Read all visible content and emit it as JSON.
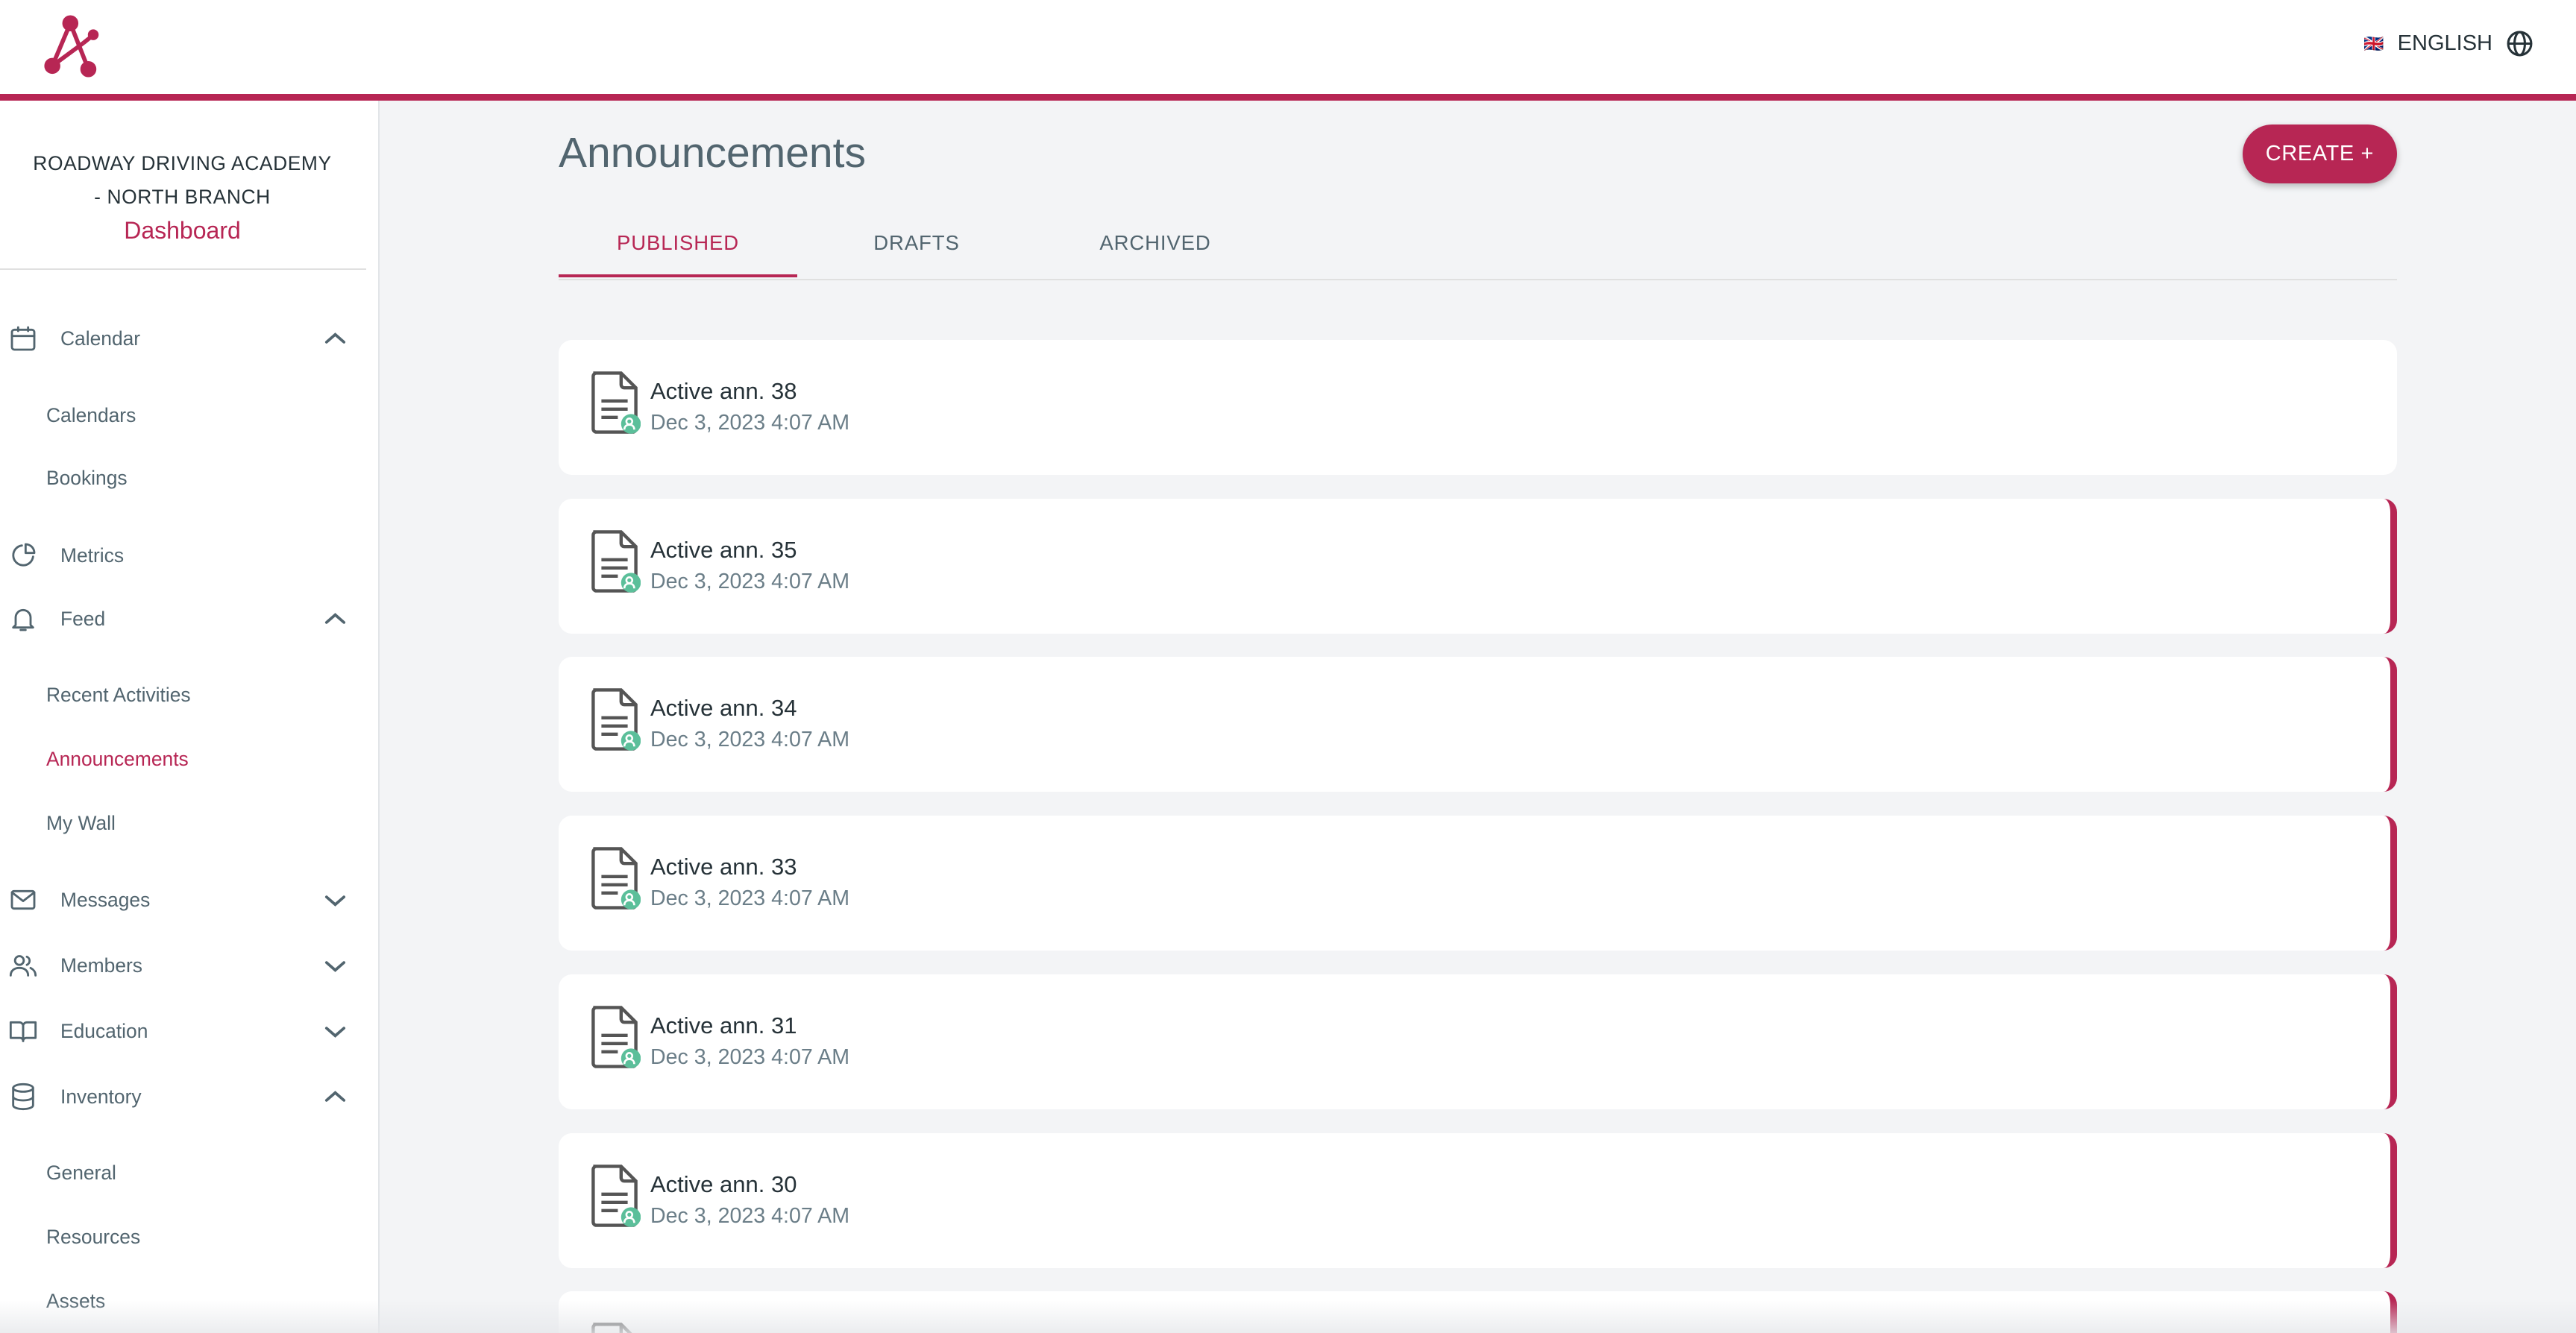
{
  "colors": {
    "accent": "#b72654",
    "badge": "#5bbf9a",
    "text": "#263238",
    "muted": "#52656f"
  },
  "header": {
    "logo": "A",
    "language": "ENGLISH",
    "flag": "🇬🇧",
    "globe_icon": "globe-icon"
  },
  "sidebar": {
    "org_line1": "ROADWAY DRIVING ACADEMY",
    "org_line2": "- NORTH BRANCH",
    "dashboard": "Dashboard",
    "items": [
      {
        "label": "Calendar",
        "icon": "calendar-icon",
        "chevron": "up"
      },
      {
        "label": "Calendars",
        "sub": true
      },
      {
        "label": "Bookings",
        "sub": true
      },
      {
        "label": "Metrics",
        "icon": "pie-chart-icon"
      },
      {
        "label": "Feed",
        "icon": "bell-icon",
        "chevron": "up"
      },
      {
        "label": "Recent Activities",
        "sub": true
      },
      {
        "label": "Announcements",
        "sub": true,
        "active": true
      },
      {
        "label": "My Wall",
        "sub": true
      },
      {
        "label": "Messages",
        "icon": "mail-icon",
        "chevron": "down"
      },
      {
        "label": "Members",
        "icon": "users-icon",
        "chevron": "down"
      },
      {
        "label": "Education",
        "icon": "book-icon",
        "chevron": "down"
      },
      {
        "label": "Inventory",
        "icon": "database-icon",
        "chevron": "up"
      },
      {
        "label": "General",
        "sub": true
      },
      {
        "label": "Resources",
        "sub": true
      },
      {
        "label": "Assets",
        "sub": true
      }
    ]
  },
  "main": {
    "title": "Announcements",
    "create_label": "CREATE +",
    "tabs": [
      {
        "label": "PUBLISHED",
        "active": true
      },
      {
        "label": "DRAFTS"
      },
      {
        "label": "ARCHIVED"
      }
    ],
    "announcements": [
      {
        "title": "Active ann. 38",
        "date": "Dec 3, 2023 4:07 AM",
        "marked": false
      },
      {
        "title": "Active ann. 35",
        "date": "Dec 3, 2023 4:07 AM",
        "marked": true
      },
      {
        "title": "Active ann. 34",
        "date": "Dec 3, 2023 4:07 AM",
        "marked": true
      },
      {
        "title": "Active ann. 33",
        "date": "Dec 3, 2023 4:07 AM",
        "marked": true
      },
      {
        "title": "Active ann. 31",
        "date": "Dec 3, 2023 4:07 AM",
        "marked": true
      },
      {
        "title": "Active ann. 30",
        "date": "Dec 3, 2023 4:07 AM",
        "marked": true
      },
      {
        "title": "",
        "date": "",
        "marked": true
      }
    ]
  }
}
